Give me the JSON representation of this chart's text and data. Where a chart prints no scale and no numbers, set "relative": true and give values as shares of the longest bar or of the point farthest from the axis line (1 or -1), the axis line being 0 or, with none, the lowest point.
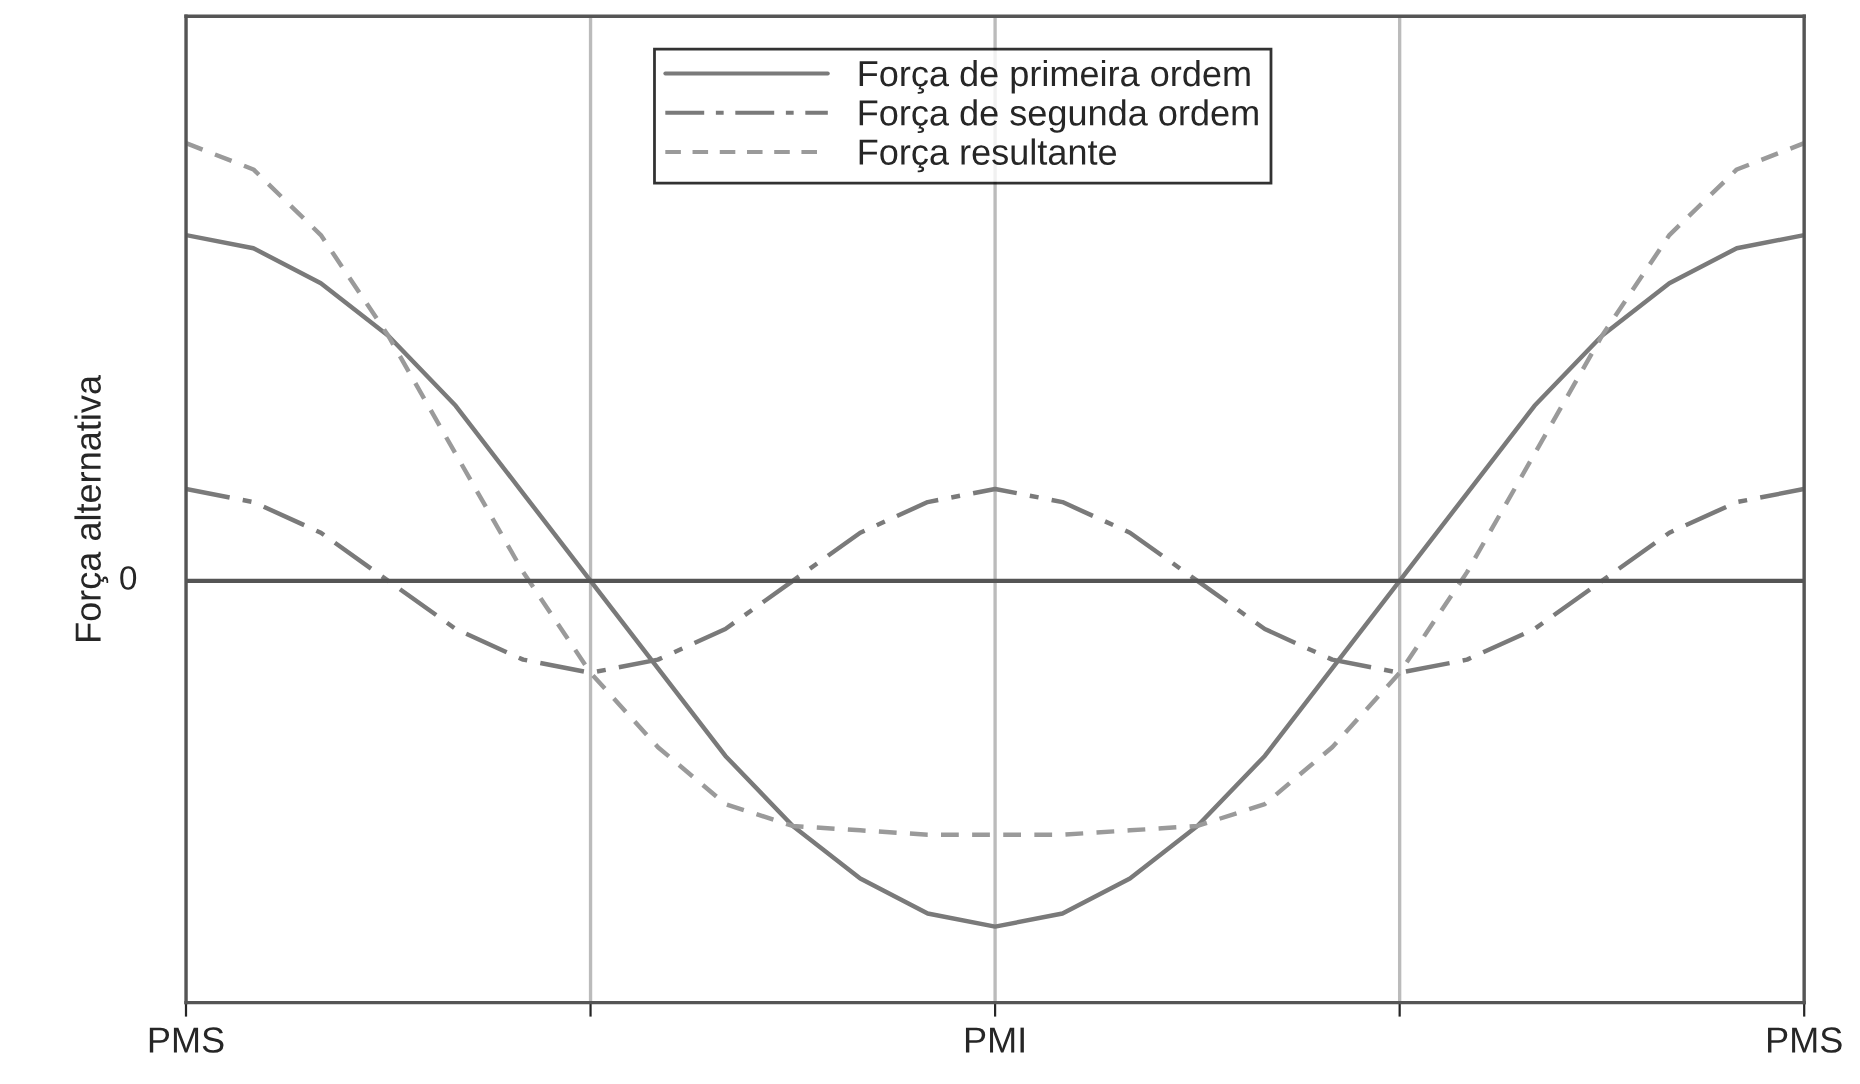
{
  "chart_data": {
    "type": "line",
    "relative": true,
    "ylabel": "Força alternativa",
    "categories": [
      "PMS",
      null,
      null,
      null,
      null,
      null,
      null,
      null,
      null,
      null,
      null,
      null,
      "PMI",
      null,
      null,
      null,
      null,
      null,
      null,
      null,
      null,
      null,
      null,
      null,
      "PMS"
    ],
    "series": [
      {
        "name": "Força de primeira ordem",
        "color": "#7a7a7a",
        "line_style": "solid",
        "values": [
          0.79,
          0.76,
          0.68,
          0.56,
          0.4,
          0.2,
          0,
          -0.2,
          -0.4,
          -0.56,
          -0.68,
          -0.76,
          -0.79,
          -0.76,
          -0.68,
          -0.56,
          -0.4,
          -0.2,
          0,
          0.2,
          0.4,
          0.56,
          0.68,
          0.76,
          0.79
        ]
      },
      {
        "name": "Força de segunda ordem",
        "color": "#7a7a7a",
        "line_style": "dashdot",
        "values": [
          0.21,
          0.18,
          0.11,
          0,
          -0.11,
          -0.18,
          -0.21,
          -0.18,
          -0.11,
          0,
          0.11,
          0.18,
          0.21,
          0.18,
          0.11,
          0,
          -0.11,
          -0.18,
          -0.21,
          -0.18,
          -0.11,
          0,
          0.11,
          0.18,
          0.21
        ]
      },
      {
        "name": "Força resultante",
        "color": "#9a9a9a",
        "line_style": "dashed",
        "values": [
          1.0,
          0.94,
          0.79,
          0.56,
          0.29,
          0.02,
          -0.21,
          -0.38,
          -0.51,
          -0.56,
          -0.57,
          -0.58,
          -0.58,
          -0.58,
          -0.57,
          -0.56,
          -0.51,
          -0.38,
          -0.21,
          0.02,
          0.29,
          0.56,
          0.79,
          0.94,
          1.0
        ]
      }
    ],
    "annotations": [
      "0"
    ],
    "grid": "x",
    "legend": "top"
  }
}
